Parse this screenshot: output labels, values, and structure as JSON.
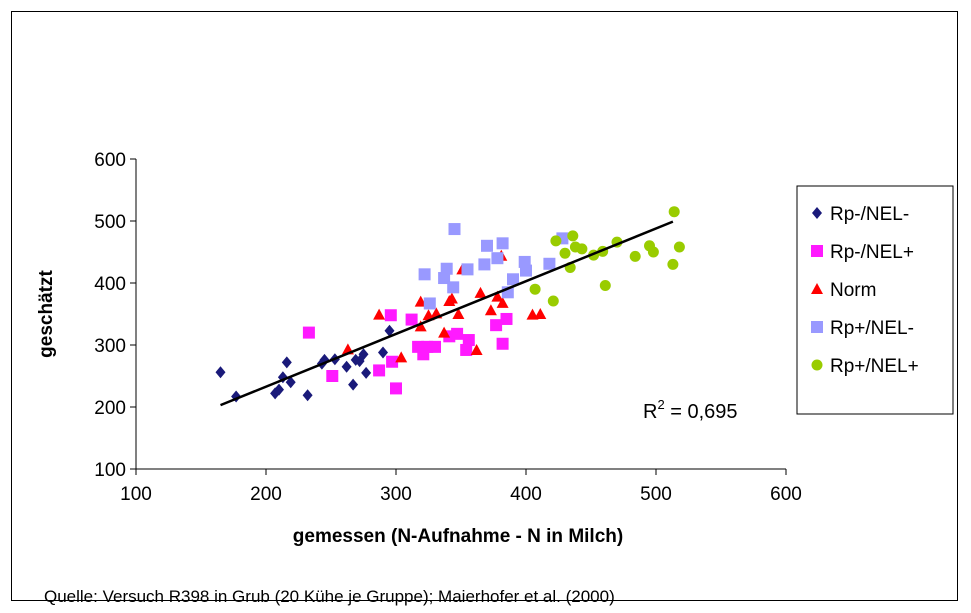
{
  "chart_data": {
    "type": "scatter",
    "xlabel": "gemessen (N-Aufnahme - N in Milch)",
    "ylabel": "geschätzt",
    "xlim": [
      100,
      600
    ],
    "ylim": [
      100,
      600
    ],
    "xticks": [
      "100",
      "200",
      "300",
      "400",
      "500",
      "600"
    ],
    "yticks": [
      "100",
      "200",
      "300",
      "400",
      "500",
      "600"
    ],
    "grid": false,
    "legend_position": "right",
    "annotation": {
      "r2_label": "R",
      "r2_sup": "2",
      "r2_value": " = 0,695"
    },
    "trendline": {
      "x": [
        165,
        513
      ],
      "y": [
        203,
        499
      ],
      "color": "#000000"
    },
    "series": [
      {
        "name": "Rp-/NEL-",
        "marker": "diamond",
        "color": "#1a1a7a",
        "x": [
          165,
          177,
          207,
          210,
          213,
          216,
          219,
          232,
          243,
          245,
          253,
          262,
          267,
          269,
          272,
          275,
          277,
          290,
          295
        ],
        "y": [
          256,
          217,
          222,
          228,
          248,
          272,
          240,
          219,
          270,
          276,
          277,
          265,
          236,
          276,
          274,
          285,
          255,
          288,
          323
        ]
      },
      {
        "name": "Rp-/NEL+",
        "marker": "square",
        "color": "#ff1aff",
        "x": [
          233,
          251,
          287,
          296,
          297,
          300,
          312,
          317,
          321,
          324,
          330,
          341,
          347,
          354,
          356,
          377,
          382,
          385
        ],
        "y": [
          320,
          250,
          259,
          348,
          273,
          230,
          341,
          297,
          285,
          297,
          297,
          314,
          318,
          292,
          308,
          332,
          302,
          342
        ]
      },
      {
        "name": "Norm",
        "marker": "triangle",
        "color": "#ff0000",
        "x": [
          263,
          287,
          304,
          319,
          319,
          325,
          331,
          337,
          341,
          343,
          348,
          351,
          362,
          365,
          373,
          378,
          381,
          382,
          405,
          411
        ],
        "y": [
          293,
          349,
          280,
          330,
          370,
          348,
          351,
          320,
          371,
          375,
          350,
          422,
          292,
          384,
          356,
          378,
          444,
          368,
          349,
          350
        ]
      },
      {
        "name": "Rp+/NEL-",
        "marker": "square",
        "color": "#9999ff",
        "x": [
          322,
          326,
          337,
          339,
          344,
          345,
          355,
          368,
          370,
          378,
          382,
          386,
          390,
          399,
          400,
          418,
          428
        ],
        "y": [
          414,
          367,
          408,
          423,
          393,
          487,
          422,
          430,
          460,
          440,
          464,
          385,
          406,
          434,
          420,
          431,
          472
        ]
      },
      {
        "name": "Rp+/NEL+",
        "marker": "circle",
        "color": "#99cc00",
        "x": [
          407,
          421,
          423,
          430,
          434,
          436,
          438,
          443,
          452,
          459,
          461,
          470,
          484,
          495,
          498,
          513,
          514,
          518
        ],
        "y": [
          390,
          371,
          468,
          448,
          425,
          476,
          458,
          455,
          445,
          451,
          396,
          466,
          443,
          460,
          450,
          430,
          515,
          458
        ]
      }
    ]
  },
  "footer": {
    "source": "Quelle: Versuch R398 in Grub (20 Kühe je Gruppe); Maierhofer et al. (2000)"
  }
}
